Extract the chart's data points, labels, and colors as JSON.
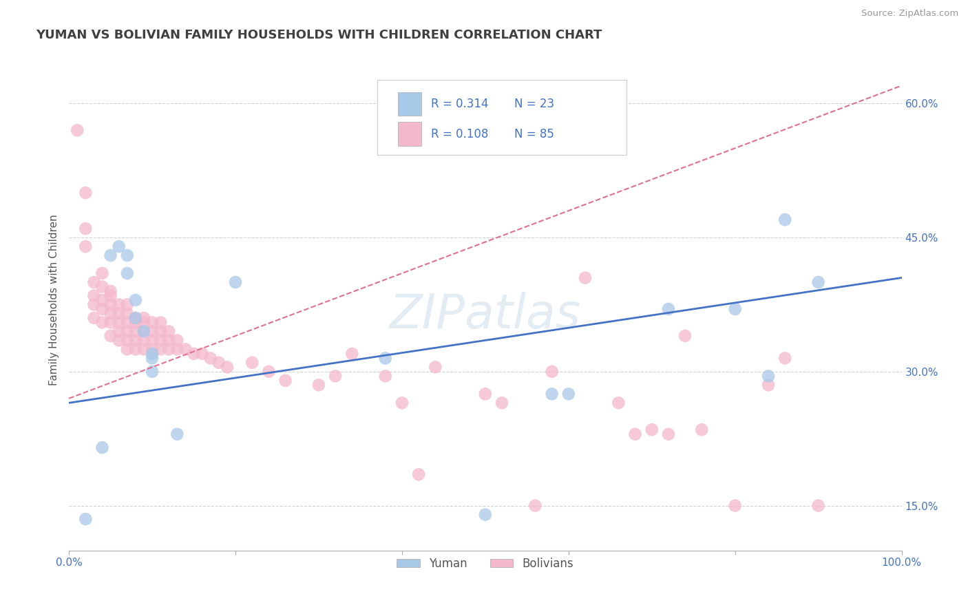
{
  "title": "YUMAN VS BOLIVIAN FAMILY HOUSEHOLDS WITH CHILDREN CORRELATION CHART",
  "source": "Source: ZipAtlas.com",
  "ylabel": "Family Households with Children",
  "xlabel": "",
  "watermark": "ZIPatlas",
  "xlim": [
    0.0,
    1.0
  ],
  "ylim": [
    0.1,
    0.66
  ],
  "xticks": [
    0.0,
    0.2,
    0.4,
    0.6,
    0.8,
    1.0
  ],
  "yticks": [
    0.15,
    0.3,
    0.45,
    0.6
  ],
  "xtick_labels": [
    "0.0%",
    "",
    "",
    "",
    "",
    "100.0%"
  ],
  "ytick_labels_right": [
    "15.0%",
    "30.0%",
    "45.0%",
    "60.0%"
  ],
  "legend_r_yuman": "R = 0.314",
  "legend_n_yuman": "N = 23",
  "legend_r_bolivian": "R = 0.108",
  "legend_n_bolivian": "N = 85",
  "yuman_color": "#a8c8e8",
  "bolivian_color": "#f4b8cc",
  "yuman_line_color": "#4472c4",
  "bolivian_line_color": "#e07090",
  "title_color": "#404040",
  "axis_label_color": "#555555",
  "tick_color": "#4472c4",
  "source_color": "#999999",
  "grid_color": "#cccccc",
  "yuman_scatter_x": [
    0.02,
    0.04,
    0.05,
    0.06,
    0.07,
    0.07,
    0.08,
    0.08,
    0.09,
    0.1,
    0.1,
    0.1,
    0.13,
    0.2,
    0.38,
    0.5,
    0.58,
    0.6,
    0.72,
    0.8,
    0.84,
    0.86,
    0.9
  ],
  "yuman_scatter_y": [
    0.135,
    0.215,
    0.43,
    0.44,
    0.41,
    0.43,
    0.36,
    0.38,
    0.345,
    0.3,
    0.315,
    0.32,
    0.23,
    0.4,
    0.315,
    0.14,
    0.275,
    0.275,
    0.37,
    0.37,
    0.295,
    0.47,
    0.4
  ],
  "bolivian_scatter_x": [
    0.01,
    0.02,
    0.02,
    0.02,
    0.03,
    0.03,
    0.03,
    0.03,
    0.04,
    0.04,
    0.04,
    0.04,
    0.04,
    0.05,
    0.05,
    0.05,
    0.05,
    0.05,
    0.05,
    0.06,
    0.06,
    0.06,
    0.06,
    0.06,
    0.07,
    0.07,
    0.07,
    0.07,
    0.07,
    0.07,
    0.08,
    0.08,
    0.08,
    0.08,
    0.08,
    0.09,
    0.09,
    0.09,
    0.09,
    0.09,
    0.1,
    0.1,
    0.1,
    0.1,
    0.11,
    0.11,
    0.11,
    0.11,
    0.12,
    0.12,
    0.12,
    0.13,
    0.13,
    0.14,
    0.15,
    0.16,
    0.17,
    0.18,
    0.19,
    0.22,
    0.24,
    0.26,
    0.3,
    0.32,
    0.34,
    0.38,
    0.4,
    0.42,
    0.44,
    0.5,
    0.52,
    0.56,
    0.58,
    0.62,
    0.64,
    0.66,
    0.68,
    0.7,
    0.72,
    0.74,
    0.76,
    0.8,
    0.84,
    0.86,
    0.9
  ],
  "bolivian_scatter_y": [
    0.57,
    0.44,
    0.46,
    0.5,
    0.36,
    0.375,
    0.385,
    0.4,
    0.355,
    0.37,
    0.38,
    0.395,
    0.41,
    0.34,
    0.355,
    0.365,
    0.375,
    0.385,
    0.39,
    0.335,
    0.345,
    0.355,
    0.365,
    0.375,
    0.325,
    0.335,
    0.345,
    0.355,
    0.365,
    0.375,
    0.325,
    0.335,
    0.345,
    0.355,
    0.36,
    0.325,
    0.335,
    0.345,
    0.355,
    0.36,
    0.325,
    0.335,
    0.345,
    0.355,
    0.325,
    0.335,
    0.345,
    0.355,
    0.325,
    0.335,
    0.345,
    0.325,
    0.335,
    0.325,
    0.32,
    0.32,
    0.315,
    0.31,
    0.305,
    0.31,
    0.3,
    0.29,
    0.285,
    0.295,
    0.32,
    0.295,
    0.265,
    0.185,
    0.305,
    0.275,
    0.265,
    0.15,
    0.3,
    0.405,
    0.565,
    0.265,
    0.23,
    0.235,
    0.23,
    0.34,
    0.235,
    0.15,
    0.285,
    0.315,
    0.15
  ],
  "yuman_trendline_x": [
    0.0,
    1.0
  ],
  "yuman_trendline_y": [
    0.265,
    0.405
  ],
  "bolivian_trendline_x": [
    0.0,
    1.0
  ],
  "bolivian_trendline_y": [
    0.27,
    0.62
  ]
}
